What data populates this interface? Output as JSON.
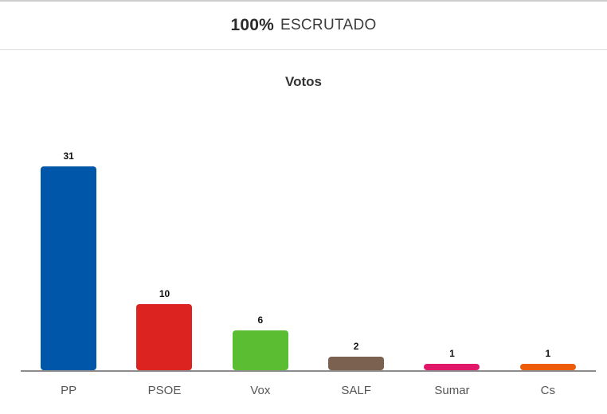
{
  "header": {
    "percent": "100%",
    "label": "ESCRUTADO"
  },
  "chart_title": "Votos",
  "chart_data": {
    "type": "bar",
    "title": "Votos",
    "categories": [
      "PP",
      "PSOE",
      "Vox",
      "SALF",
      "Sumar",
      "Cs"
    ],
    "values": [
      31,
      10,
      6,
      2,
      1,
      1
    ],
    "value_labels": [
      "31",
      "10",
      "6",
      "2",
      "1",
      "1"
    ],
    "colors": [
      "#0056A8",
      "#DC2320",
      "#5ABD32",
      "#7A6150",
      "#E1176A",
      "#EC5C0B"
    ],
    "xlabel": "",
    "ylabel": "",
    "ylim": [
      0,
      31
    ],
    "grid": false,
    "legend_position": "none",
    "axis_line_color": "#8c8c8c"
  }
}
